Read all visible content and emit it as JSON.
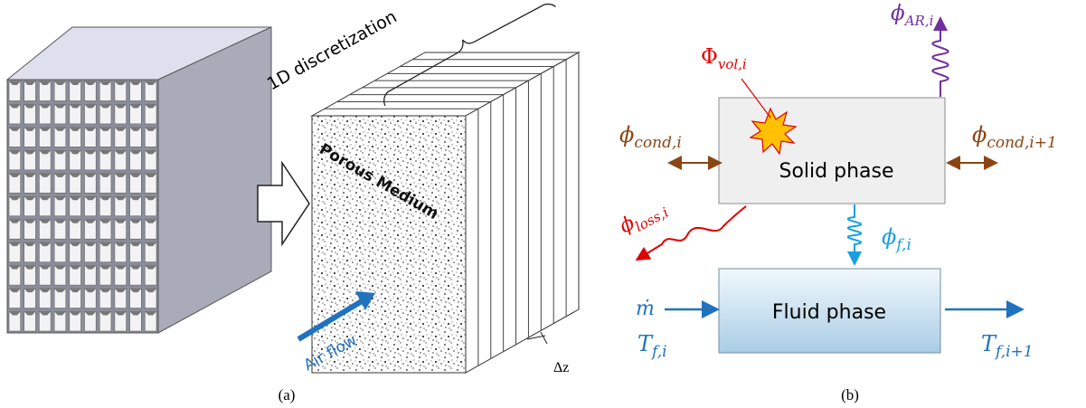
{
  "panel_a": {
    "caption": "(a)",
    "bracket_label": "1D discretization",
    "medium_label": "Porous Medium",
    "flow_label": "Air flow",
    "slice_label": "Δz"
  },
  "panel_b": {
    "caption": "(b)",
    "solid_label": "Solid phase",
    "fluid_label": "Fluid phase",
    "phi_ar": {
      "symbol": "ϕ",
      "sub": "AR,i"
    },
    "phi_vol": {
      "symbol": "Φ",
      "sub": "vol,i"
    },
    "phi_cond_left": {
      "symbol": "ϕ",
      "sub": "cond,i"
    },
    "phi_cond_right": {
      "symbol": "ϕ",
      "sub": "cond,i+1"
    },
    "phi_loss": {
      "symbol": "ϕ",
      "sub": "loss,i"
    },
    "phi_f": {
      "symbol": "ϕ",
      "sub": "f,i"
    },
    "m_dot": "ṁ",
    "t_in": {
      "symbol": "T",
      "sub": "f,i"
    },
    "t_out": {
      "symbol": "T",
      "sub": "f,i+1"
    }
  }
}
